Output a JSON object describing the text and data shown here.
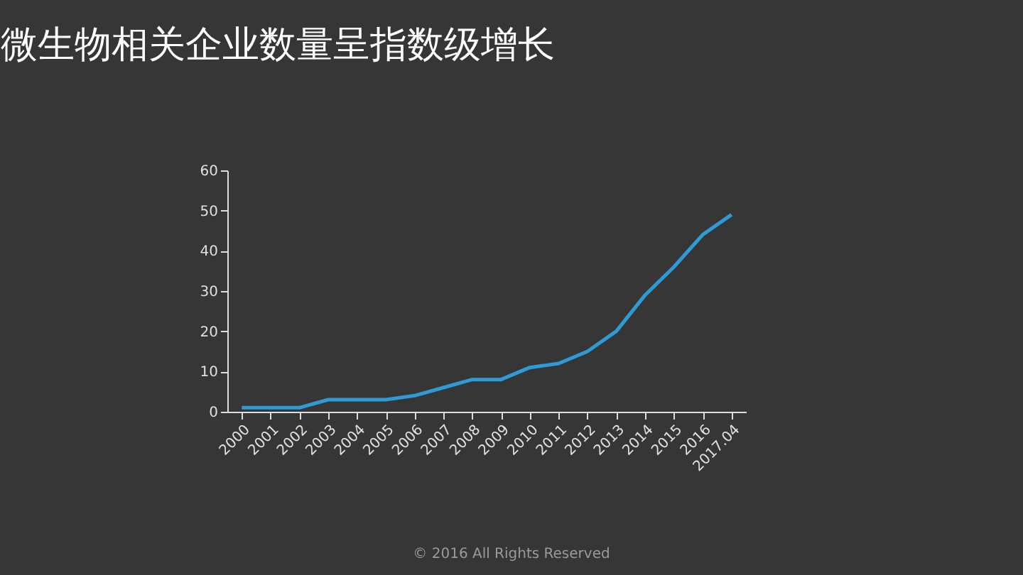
{
  "chart_data": {
    "type": "line",
    "title": "微生物相关企业数量呈指数级增长",
    "categories": [
      "2000",
      "2001",
      "2002",
      "2003",
      "2004",
      "2005",
      "2006",
      "2007",
      "2008",
      "2009",
      "2010",
      "2011",
      "2012",
      "2013",
      "2014",
      "2015",
      "2016",
      "2017.04"
    ],
    "series": [
      {
        "color": "#2e9bd6",
        "values": [
          1,
          1,
          1,
          3,
          3,
          3,
          4,
          6,
          8,
          8,
          11,
          12,
          15,
          20,
          29,
          36,
          44,
          49
        ]
      }
    ],
    "ylim": [
      0,
      60
    ],
    "yticks": [
      0,
      10,
      20,
      30,
      40,
      50,
      60
    ],
    "grid": false,
    "legend": false,
    "marker": "none",
    "line_style": "solid",
    "annotations": [
      "© 2016 All Rights Reserved"
    ]
  }
}
